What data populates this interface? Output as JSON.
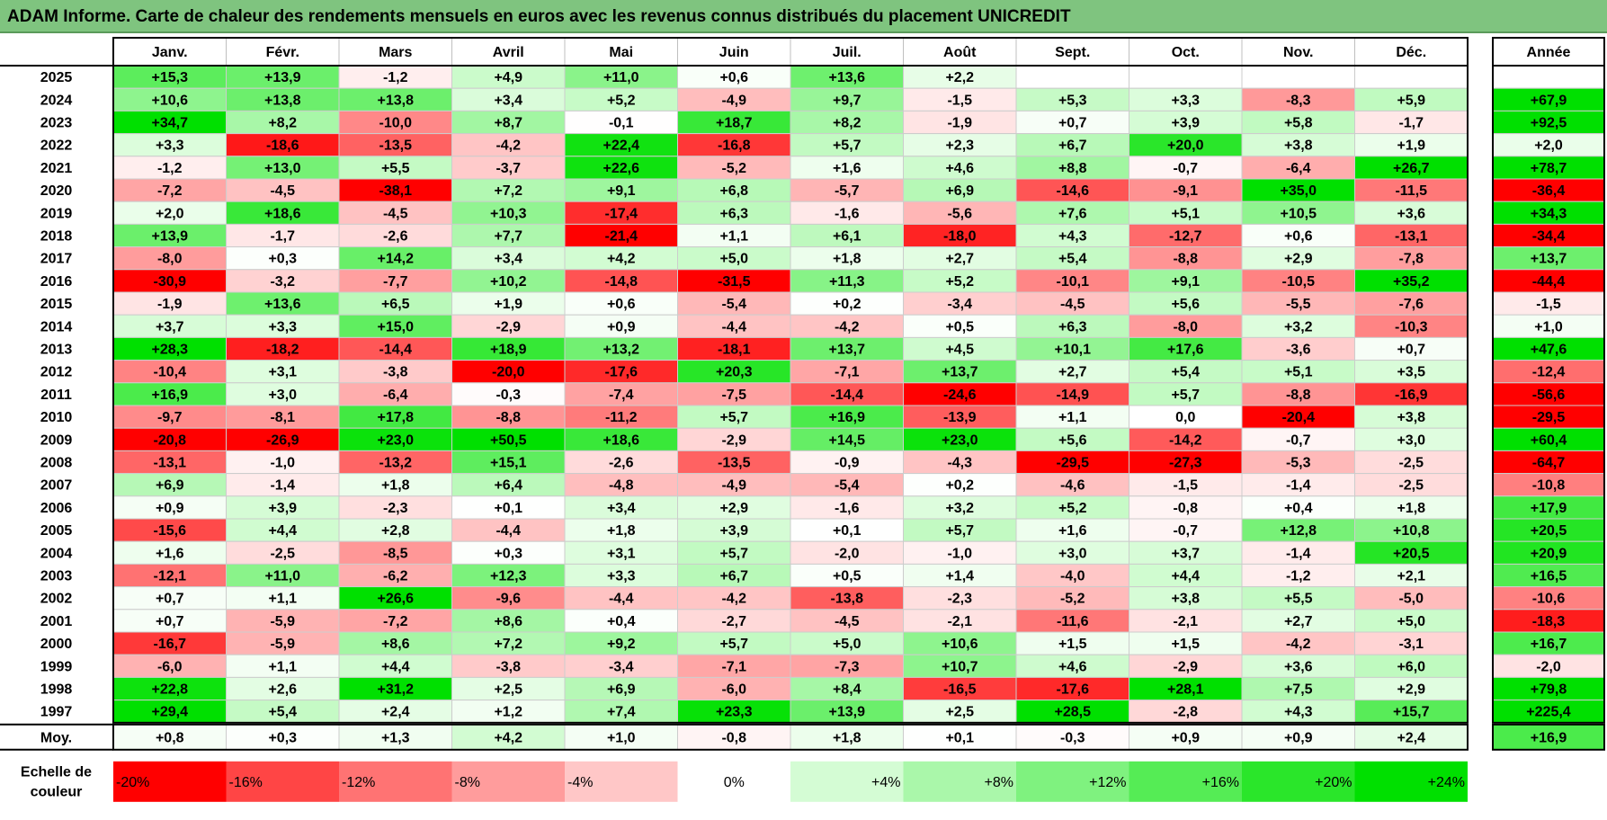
{
  "title": "ADAM Informe. Carte de chaleur des rendements mensuels en euros avec les revenus connus distribués du placement UNICREDIT",
  "chart_data": {
    "type": "heatmap",
    "title": "ADAM Informe. Carte de chaleur des rendements mensuels en euros avec les revenus connus distribués du placement UNICREDIT",
    "columns": [
      "Janv.",
      "Févr.",
      "Mars",
      "Avril",
      "Mai",
      "Juin",
      "Juil.",
      "Août",
      "Sept.",
      "Oct.",
      "Nov.",
      "Déc."
    ],
    "year_header": "Année",
    "rows": [
      {
        "label": "2025",
        "cells": [
          "+15,3",
          "+13,9",
          "-1,2",
          "+4,9",
          "+11,0",
          "+0,6",
          "+13,6",
          "+2,2",
          "",
          "",
          "",
          ""
        ],
        "year": ""
      },
      {
        "label": "2024",
        "cells": [
          "+10,6",
          "+13,8",
          "+13,8",
          "+3,4",
          "+5,2",
          "-4,9",
          "+9,7",
          "-1,5",
          "+5,3",
          "+3,3",
          "-8,3",
          "+5,9"
        ],
        "year": "+67,9"
      },
      {
        "label": "2023",
        "cells": [
          "+34,7",
          "+8,2",
          "-10,0",
          "+8,7",
          "-0,1",
          "+18,7",
          "+8,2",
          "-1,9",
          "+0,7",
          "+3,9",
          "+5,8",
          "-1,7"
        ],
        "year": "+92,5"
      },
      {
        "label": "2022",
        "cells": [
          "+3,3",
          "-18,6",
          "-13,5",
          "-4,2",
          "+22,4",
          "-16,8",
          "+5,7",
          "+2,3",
          "+6,7",
          "+20,0",
          "+3,8",
          "+1,9"
        ],
        "year": "+2,0"
      },
      {
        "label": "2021",
        "cells": [
          "-1,2",
          "+13,0",
          "+5,5",
          "-3,7",
          "+22,6",
          "-5,2",
          "+1,6",
          "+4,6",
          "+8,8",
          "-0,7",
          "-6,4",
          "+26,7"
        ],
        "year": "+78,7"
      },
      {
        "label": "2020",
        "cells": [
          "-7,2",
          "-4,5",
          "-38,1",
          "+7,2",
          "+9,1",
          "+6,8",
          "-5,7",
          "+6,9",
          "-14,6",
          "-9,1",
          "+35,0",
          "-11,5"
        ],
        "year": "-36,4"
      },
      {
        "label": "2019",
        "cells": [
          "+2,0",
          "+18,6",
          "-4,5",
          "+10,3",
          "-17,4",
          "+6,3",
          "-1,6",
          "-5,6",
          "+7,6",
          "+5,1",
          "+10,5",
          "+3,6"
        ],
        "year": "+34,3"
      },
      {
        "label": "2018",
        "cells": [
          "+13,9",
          "-1,7",
          "-2,6",
          "+7,7",
          "-21,4",
          "+1,1",
          "+6,1",
          "-18,0",
          "+4,3",
          "-12,7",
          "+0,6",
          "-13,1"
        ],
        "year": "-34,4"
      },
      {
        "label": "2017",
        "cells": [
          "-8,0",
          "+0,3",
          "+14,2",
          "+3,4",
          "+4,2",
          "+5,0",
          "+1,8",
          "+2,7",
          "+5,4",
          "-8,8",
          "+2,9",
          "-7,8"
        ],
        "year": "+13,7"
      },
      {
        "label": "2016",
        "cells": [
          "-30,9",
          "-3,2",
          "-7,7",
          "+10,2",
          "-14,8",
          "-31,5",
          "+11,3",
          "+5,2",
          "-10,1",
          "+9,1",
          "-10,5",
          "+35,2"
        ],
        "year": "-44,4"
      },
      {
        "label": "2015",
        "cells": [
          "-1,9",
          "+13,6",
          "+6,5",
          "+1,9",
          "+0,6",
          "-5,4",
          "+0,2",
          "-3,4",
          "-4,5",
          "+5,6",
          "-5,5",
          "-7,6"
        ],
        "year": "-1,5"
      },
      {
        "label": "2014",
        "cells": [
          "+3,7",
          "+3,3",
          "+15,0",
          "-2,9",
          "+0,9",
          "-4,4",
          "-4,2",
          "+0,5",
          "+6,3",
          "-8,0",
          "+3,2",
          "-10,3"
        ],
        "year": "+1,0"
      },
      {
        "label": "2013",
        "cells": [
          "+28,3",
          "-18,2",
          "-14,4",
          "+18,9",
          "+13,2",
          "-18,1",
          "+13,7",
          "+4,5",
          "+10,1",
          "+17,6",
          "-3,6",
          "+0,7"
        ],
        "year": "+47,6"
      },
      {
        "label": "2012",
        "cells": [
          "-10,4",
          "+3,1",
          "-3,8",
          "-20,0",
          "-17,6",
          "+20,3",
          "-7,1",
          "+13,7",
          "+2,7",
          "+5,4",
          "+5,1",
          "+3,5"
        ],
        "year": "-12,4"
      },
      {
        "label": "2011",
        "cells": [
          "+16,9",
          "+3,0",
          "-6,4",
          "-0,3",
          "-7,4",
          "-7,5",
          "-14,4",
          "-24,6",
          "-14,9",
          "+5,7",
          "-8,8",
          "-16,9"
        ],
        "year": "-56,6"
      },
      {
        "label": "2010",
        "cells": [
          "-9,7",
          "-8,1",
          "+17,8",
          "-8,8",
          "-11,2",
          "+5,7",
          "+16,9",
          "-13,9",
          "+1,1",
          "0,0",
          "-20,4",
          "+3,8"
        ],
        "year": "-29,5"
      },
      {
        "label": "2009",
        "cells": [
          "-20,8",
          "-26,9",
          "+23,0",
          "+50,5",
          "+18,6",
          "-2,9",
          "+14,5",
          "+23,0",
          "+5,6",
          "-14,2",
          "-0,7",
          "+3,0"
        ],
        "year": "+60,4"
      },
      {
        "label": "2008",
        "cells": [
          "-13,1",
          "-1,0",
          "-13,2",
          "+15,1",
          "-2,6",
          "-13,5",
          "-0,9",
          "-4,3",
          "-29,5",
          "-27,3",
          "-5,3",
          "-2,5"
        ],
        "year": "-64,7"
      },
      {
        "label": "2007",
        "cells": [
          "+6,9",
          "-1,4",
          "+1,8",
          "+6,4",
          "-4,8",
          "-4,9",
          "-5,4",
          "+0,2",
          "-4,6",
          "-1,5",
          "-1,4",
          "-2,5"
        ],
        "year": "-10,8"
      },
      {
        "label": "2006",
        "cells": [
          "+0,9",
          "+3,9",
          "-2,3",
          "+0,1",
          "+3,4",
          "+2,9",
          "-1,6",
          "+3,2",
          "+5,2",
          "-0,8",
          "+0,4",
          "+1,8"
        ],
        "year": "+17,9"
      },
      {
        "label": "2005",
        "cells": [
          "-15,6",
          "+4,4",
          "+2,8",
          "-4,4",
          "+1,8",
          "+3,9",
          "+0,1",
          "+5,7",
          "+1,6",
          "-0,7",
          "+12,8",
          "+10,8"
        ],
        "year": "+20,5"
      },
      {
        "label": "2004",
        "cells": [
          "+1,6",
          "-2,5",
          "-8,5",
          "+0,3",
          "+3,1",
          "+5,7",
          "-2,0",
          "-1,0",
          "+3,0",
          "+3,7",
          "-1,4",
          "+20,5"
        ],
        "year": "+20,9"
      },
      {
        "label": "2003",
        "cells": [
          "-12,1",
          "+11,0",
          "-6,2",
          "+12,3",
          "+3,3",
          "+6,7",
          "+0,5",
          "+1,4",
          "-4,0",
          "+4,4",
          "-1,2",
          "+2,1"
        ],
        "year": "+16,5"
      },
      {
        "label": "2002",
        "cells": [
          "+0,7",
          "+1,1",
          "+26,6",
          "-9,6",
          "-4,4",
          "-4,2",
          "-13,8",
          "-2,3",
          "-5,2",
          "+3,8",
          "+5,5",
          "-5,0"
        ],
        "year": "-10,6"
      },
      {
        "label": "2001",
        "cells": [
          "+0,7",
          "-5,9",
          "-7,2",
          "+8,6",
          "+0,4",
          "-2,7",
          "-4,5",
          "-2,1",
          "-11,6",
          "-2,1",
          "+2,7",
          "+5,0"
        ],
        "year": "-18,3"
      },
      {
        "label": "2000",
        "cells": [
          "-16,7",
          "-5,9",
          "+8,6",
          "+7,2",
          "+9,2",
          "+5,7",
          "+5,0",
          "+10,6",
          "+1,5",
          "+1,5",
          "-4,2",
          "-3,1"
        ],
        "year": "+16,7"
      },
      {
        "label": "1999",
        "cells": [
          "-6,0",
          "+1,1",
          "+4,4",
          "-3,8",
          "-3,4",
          "-7,1",
          "-7,3",
          "+10,7",
          "+4,6",
          "-2,9",
          "+3,6",
          "+6,0"
        ],
        "year": "-2,0"
      },
      {
        "label": "1998",
        "cells": [
          "+22,8",
          "+2,6",
          "+31,2",
          "+2,5",
          "+6,9",
          "-6,0",
          "+8,4",
          "-16,5",
          "-17,6",
          "+28,1",
          "+7,5",
          "+2,9"
        ],
        "year": "+79,8"
      },
      {
        "label": "1997",
        "cells": [
          "+29,4",
          "+5,4",
          "+2,4",
          "+1,2",
          "+7,4",
          "+23,3",
          "+13,9",
          "+2,5",
          "+28,5",
          "-2,8",
          "+4,3",
          "+15,7"
        ],
        "year": "+225,4"
      }
    ],
    "average": {
      "label": "Moy.",
      "cells": [
        "+0,8",
        "+0,3",
        "+1,3",
        "+4,2",
        "+1,0",
        "-0,8",
        "+1,8",
        "+0,1",
        "-0,3",
        "+0,9",
        "+0,9",
        "+2,4"
      ],
      "year": "+16,9"
    },
    "legend": {
      "label_line1": "Echelle de",
      "label_line2": "couleur",
      "items": [
        {
          "text": "-20%",
          "value": -20,
          "color": "#ff0000"
        },
        {
          "text": "-16%",
          "value": -16,
          "color": "#ff4545"
        },
        {
          "text": "-12%",
          "value": -12,
          "color": "#ff7373"
        },
        {
          "text": "-8%",
          "value": -8,
          "color": "#ff9c9c"
        },
        {
          "text": "-4%",
          "value": -4,
          "color": "#ffc7c7"
        },
        {
          "text": "0%",
          "value": 0,
          "color": "#ffffff"
        },
        {
          "text": "+4%",
          "value": 4,
          "color": "#d4fcd4"
        },
        {
          "text": "+8%",
          "value": 8,
          "color": "#aaf7aa"
        },
        {
          "text": "+12%",
          "value": 12,
          "color": "#7ff27f"
        },
        {
          "text": "+16%",
          "value": 16,
          "color": "#55ec55"
        },
        {
          "text": "+20%",
          "value": 20,
          "color": "#2ae62a"
        },
        {
          "text": "+24%",
          "value": 24,
          "color": "#00e000"
        }
      ]
    }
  }
}
